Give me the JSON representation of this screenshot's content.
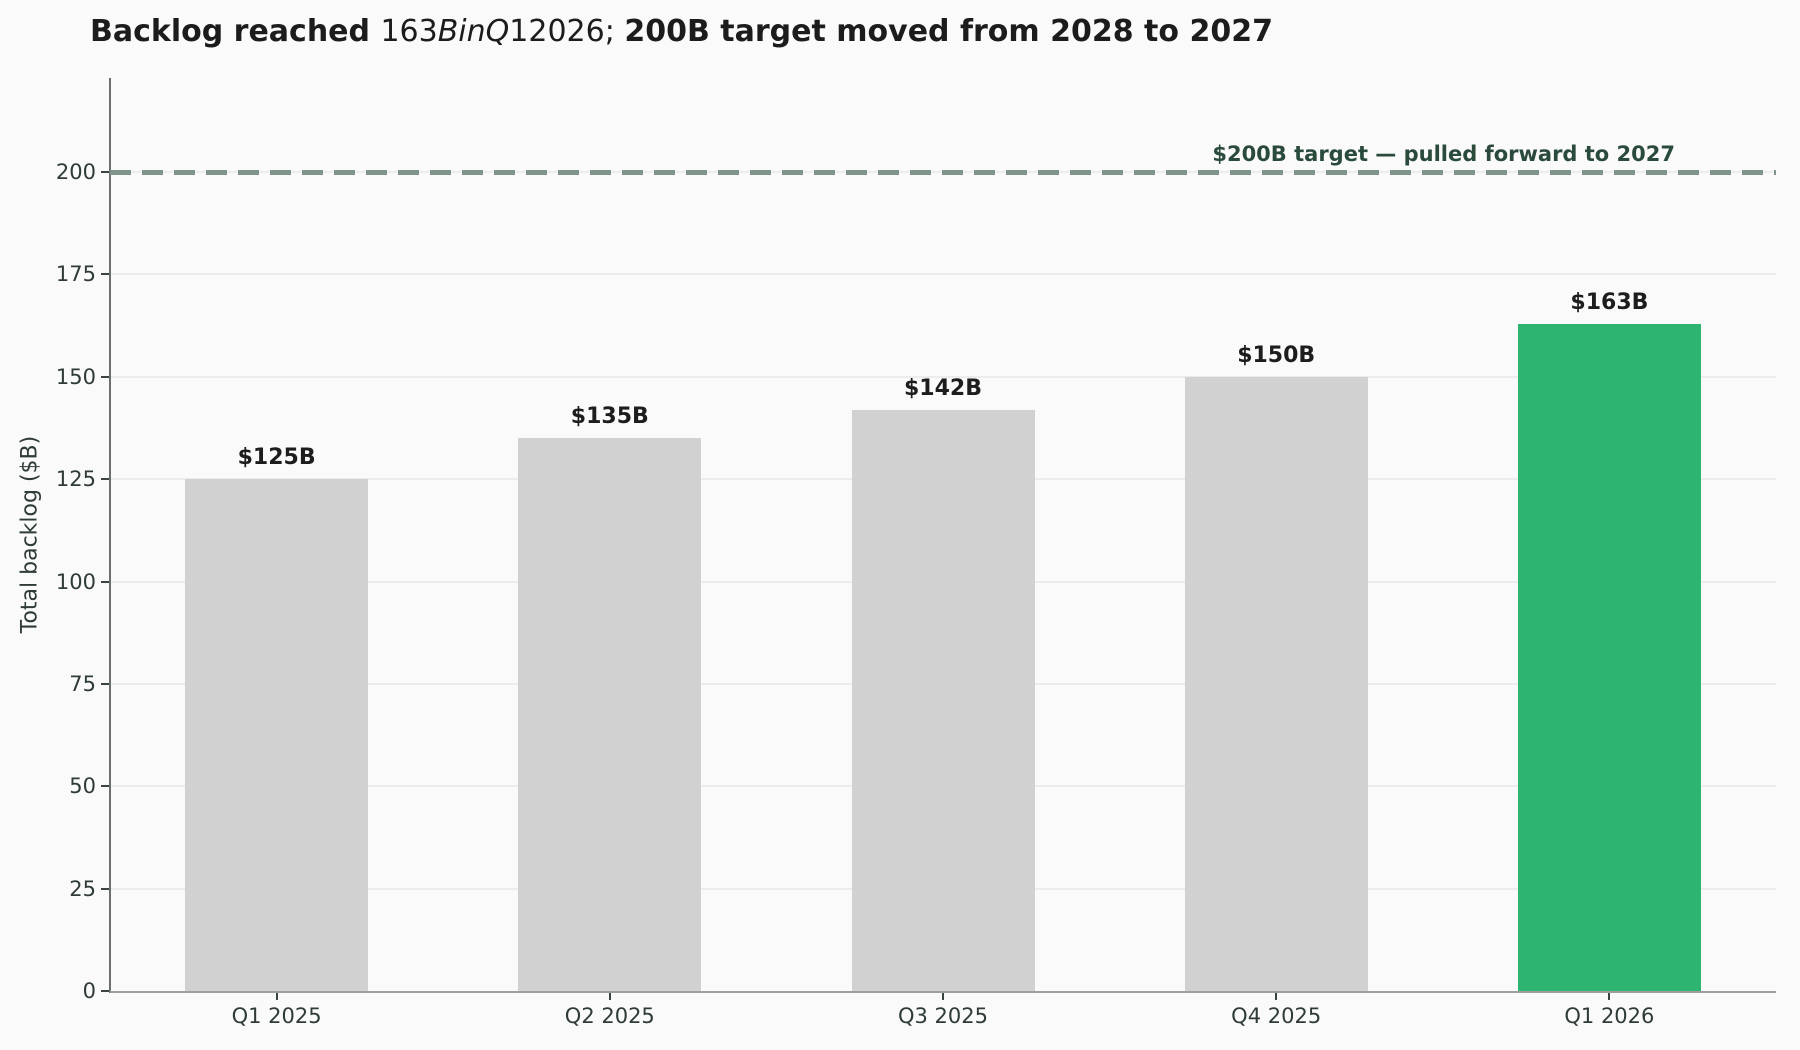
{
  "title": {
    "prefix": "Backlog reached ",
    "math_1": "163",
    "math_2": "BinQ",
    "math_3": "12026; ",
    "suffix": "200B target moved from 2028 to 2027"
  },
  "y_axis": {
    "label": "Total backlog ($B)",
    "ticks": [
      0,
      25,
      50,
      75,
      100,
      125,
      150,
      175,
      200
    ]
  },
  "x_axis": {
    "ticks": [
      "Q1 2025",
      "Q2 2025",
      "Q3 2025",
      "Q4 2025",
      "Q1 2026"
    ]
  },
  "target": {
    "label": "$200B target — pulled forward to 2027",
    "value": 200
  },
  "colors": {
    "background": "#fafafa",
    "bar_gray": "#d1d1d1",
    "bar_green": "#2db471",
    "target_line": "#7e938a",
    "target_label": "#2a4a3c",
    "gridline": "#ececec",
    "tick_text": "#2f3b35",
    "value_text": "#1d1d1d"
  },
  "chart_data": {
    "type": "bar",
    "title": "Backlog reached 163BinQ12026; 200B target moved from 2028 to 2027",
    "categories": [
      "Q1 2025",
      "Q2 2025",
      "Q3 2025",
      "Q4 2025",
      "Q1 2026"
    ],
    "values": [
      125,
      135,
      142,
      150,
      163
    ],
    "bar_labels": [
      "$125B",
      "$135B",
      "$142B",
      "$150B",
      "$163B"
    ],
    "bar_colors": [
      "#d1d1d1",
      "#d1d1d1",
      "#d1d1d1",
      "#d1d1d1",
      "#2db471"
    ],
    "highlight_category": "Q1 2026",
    "xlabel": "",
    "ylabel": "Total backlog ($B)",
    "yticks": [
      0,
      25,
      50,
      75,
      100,
      125,
      150,
      175,
      200
    ],
    "ylim": [
      0,
      223
    ],
    "grid": "horizontal",
    "legend": "none",
    "target_line": {
      "value": 200,
      "style": "dashed",
      "color": "#7e938a",
      "label": "$200B target — pulled forward to 2027",
      "label_color": "#2a4a3c",
      "label_align": "right"
    }
  }
}
